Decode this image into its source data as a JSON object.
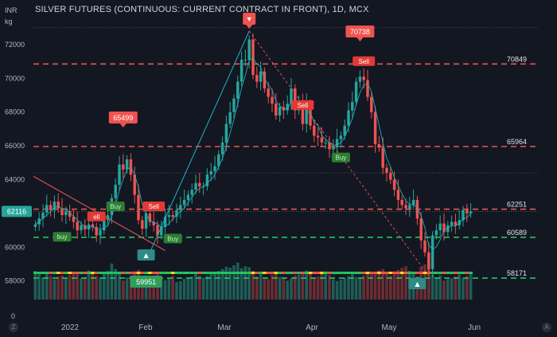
{
  "title": "SILVER FUTURES (CONTINUOUS: CURRENT CONTRACT IN FRONT), 1D, MCX",
  "currency": "INR",
  "unit": "kg",
  "corner_left_label": "Z",
  "corner_right_label": "A",
  "colors": {
    "background": "#131722",
    "up": "#26a69a",
    "down": "#ef5350",
    "support": "#21c55d",
    "resistance": "#ef5350",
    "text": "#b2b5be",
    "ma": "#1fb5c4",
    "trendline": "#e05252"
  },
  "chart_data": {
    "type": "candlestick",
    "title": "SILVER FUTURES (CONTINUOUS: CURRENT CONTRACT IN FRONT), 1D, MCX",
    "y_ticks": [
      58000,
      60000,
      62000,
      64000,
      66000,
      68000,
      70000,
      72000
    ],
    "ylim": [
      56900,
      73600
    ],
    "x_ticks": [
      "2022",
      "Feb",
      "Mar",
      "Apr",
      "May",
      "Jun"
    ],
    "volume_axis_zero": "0",
    "current_price": "62116",
    "current_price_value": 62116,
    "horizontal_levels": [
      {
        "label": "70849",
        "value": 70849,
        "kind": "resistance"
      },
      {
        "label": "65964",
        "value": 65964,
        "kind": "resistance"
      },
      {
        "label": "62251",
        "value": 62251,
        "kind": "resistance"
      },
      {
        "label": "60589",
        "value": 60589,
        "kind": "support"
      },
      {
        "label": "58171",
        "value": 58171,
        "kind": "support"
      }
    ],
    "dotted_levels": [
      73000,
      64400
    ],
    "closes": [
      61350,
      61700,
      62050,
      62500,
      62200,
      62700,
      62300,
      61900,
      62150,
      61800,
      61500,
      61000,
      61300,
      61050,
      61350,
      61200,
      60700,
      61000,
      61600,
      61900,
      62900,
      63700,
      64900,
      64600,
      65200,
      64300,
      63100,
      61600,
      61100,
      62000,
      61500,
      61300,
      60700,
      61200,
      61800,
      61900,
      61800,
      62200,
      62500,
      62800,
      63100,
      63400,
      63800,
      63600,
      63600,
      64300,
      64500,
      64800,
      65500,
      66200,
      67300,
      68000,
      68800,
      69800,
      71100,
      71100,
      72300,
      70200,
      69800,
      70400,
      69400,
      68900,
      68500,
      67800,
      68300,
      68100,
      68500,
      69400,
      68100,
      68600,
      67300,
      68500,
      67200,
      66600,
      66500,
      66200,
      66200,
      65800,
      65900,
      66400,
      66600,
      67200,
      68100,
      68600,
      69800,
      70100,
      69900,
      68900,
      68000,
      66100,
      65900,
      64700,
      64400,
      64000,
      63400,
      62800,
      62500,
      62300,
      62500,
      62800,
      61700,
      60400,
      59700,
      58700,
      60700,
      61000,
      61400,
      60900,
      61300,
      61500,
      61300,
      61600,
      62200,
      62000,
      62116
    ],
    "volume_scale": [
      0,
      1
    ],
    "volumes": [
      0.62,
      0.55,
      0.48,
      0.56,
      0.51,
      0.44,
      0.5,
      0.52,
      0.47,
      0.53,
      0.6,
      0.58,
      0.46,
      0.49,
      0.63,
      0.57,
      0.51,
      0.48,
      0.59,
      0.62,
      0.78,
      0.66,
      0.55,
      0.41,
      0.48,
      0.52,
      0.61,
      0.64,
      0.5,
      0.44,
      0.47,
      0.52,
      0.56,
      0.49,
      0.42,
      0.46,
      0.51,
      0.38,
      0.4,
      0.45,
      0.48,
      0.5,
      0.56,
      0.52,
      0.47,
      0.51,
      0.55,
      0.58,
      0.62,
      0.66,
      0.71,
      0.69,
      0.74,
      0.8,
      0.68,
      0.72,
      0.7,
      0.62,
      0.5,
      0.55,
      0.48,
      0.44,
      0.53,
      0.57,
      0.49,
      0.46,
      0.41,
      0.45,
      0.52,
      0.54,
      0.6,
      0.63,
      0.55,
      0.48,
      0.5,
      0.57,
      0.61,
      0.53,
      0.44,
      0.4,
      0.43,
      0.47,
      0.51,
      0.55,
      0.49,
      0.46,
      0.52,
      0.56,
      0.6,
      0.58,
      0.63,
      0.66,
      0.57,
      0.52,
      0.61,
      0.64,
      0.69,
      0.72,
      0.62,
      0.55,
      0.5,
      0.71,
      0.76,
      0.66,
      0.53,
      0.48,
      0.52,
      0.41,
      0.44,
      0.46,
      0.5,
      0.54,
      0.47,
      0.51,
      0.55
    ],
    "bubbles": [
      {
        "label": "65499",
        "at": 23
      },
      {
        "label": "70738",
        "at": 85
      },
      {
        "label": "▼",
        "at": 56
      }
    ],
    "signals": [
      {
        "label": "Sell",
        "at": 16,
        "kind": "sell",
        "short": "ell"
      },
      {
        "label": "buy",
        "at": 7,
        "kind": "buy"
      },
      {
        "label": "Buy",
        "at": 21,
        "kind": "buy"
      },
      {
        "label": "Sell",
        "at": 31,
        "kind": "sell"
      },
      {
        "label": "Buy",
        "at": 36,
        "kind": "buy"
      },
      {
        "label": "Sell",
        "at": 70,
        "kind": "sell"
      },
      {
        "label": "Buy",
        "at": 80,
        "kind": "buy"
      },
      {
        "label": "Sell",
        "at": 86,
        "kind": "sell"
      }
    ],
    "low_marker": {
      "label": "59951"
    },
    "markers": [
      {
        "glyph": "▲",
        "at": 29
      },
      {
        "glyph": "▲",
        "at": 100
      }
    ]
  }
}
